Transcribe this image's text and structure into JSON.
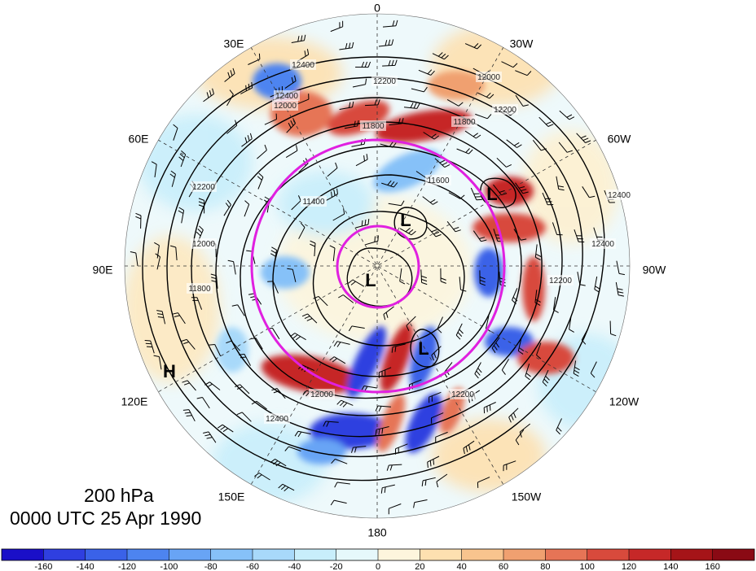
{
  "map": {
    "projection": "north polar stereographic",
    "longitude_labels": [
      {
        "text": "0",
        "lon": 0
      },
      {
        "text": "30W",
        "lon": -30
      },
      {
        "text": "60W",
        "lon": -60
      },
      {
        "text": "90W",
        "lon": -90
      },
      {
        "text": "120W",
        "lon": -120
      },
      {
        "text": "150W",
        "lon": -150
      },
      {
        "text": "180",
        "lon": 180
      },
      {
        "text": "150E",
        "lon": 150
      },
      {
        "text": "120E",
        "lon": 120
      },
      {
        "text": "90E",
        "lon": 90
      },
      {
        "text": "60E",
        "lon": 60
      },
      {
        "text": "30E",
        "lon": 30
      }
    ],
    "height_contour_labels": [
      "12400",
      "12200",
      "12000",
      "11800",
      "11600",
      "11400",
      "12400",
      "12200",
      "12000",
      "11800",
      "12200",
      "12000",
      "11800",
      "12400",
      "12400",
      "12400",
      "12200",
      "12200",
      "12000"
    ],
    "pressure_centers": [
      {
        "symbol": "L"
      },
      {
        "symbol": "L"
      },
      {
        "symbol": "L"
      },
      {
        "symbol": "L"
      },
      {
        "symbol": "H"
      }
    ],
    "colors": {
      "highlight_circles": "#e020e0",
      "contours": "#000000"
    }
  },
  "title": {
    "level": "200 hPa",
    "time": "0000 UTC 25 Apr 1990"
  },
  "colorbar": {
    "tick_labels": [
      "-160",
      "-140",
      "-120",
      "-100",
      "-80",
      "-60",
      "-40",
      "-20",
      "0",
      "20",
      "40",
      "60",
      "80",
      "100",
      "120",
      "140",
      "160"
    ],
    "colors": [
      "#1a0fc8",
      "#2f3fe0",
      "#3a62e8",
      "#4d84f0",
      "#68a4f5",
      "#86c1f8",
      "#a8d9fa",
      "#c8eefb",
      "#e6f8fb",
      "#fdf5dd",
      "#fde0b0",
      "#f8c48e",
      "#f0a070",
      "#e67456",
      "#d84a3c",
      "#c62828",
      "#a51418",
      "#8a0a14"
    ]
  }
}
